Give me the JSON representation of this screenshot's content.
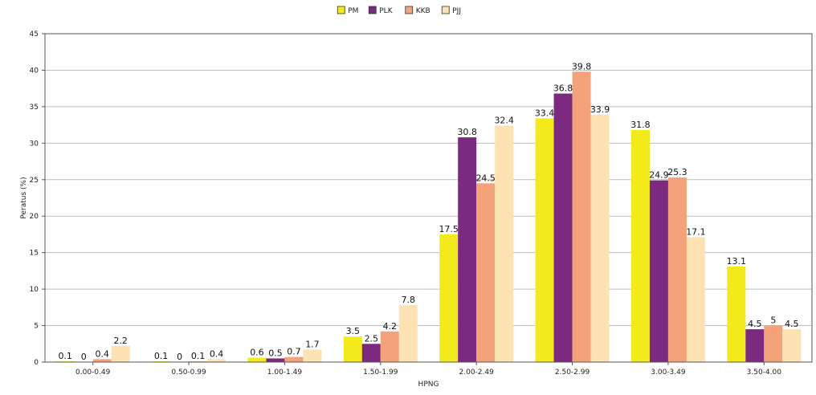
{
  "chart_data": {
    "type": "bar",
    "title": "",
    "xlabel": "HPNG",
    "ylabel": "Peratus (%)",
    "ylim": [
      0,
      45
    ],
    "ytick_step": 5,
    "grid": true,
    "legend_position": "top-center",
    "categories": [
      "0.00-0.49",
      "0.50-0.99",
      "1.00-1.49",
      "1.50-1.99",
      "2.00-2.49",
      "2.50-2.99",
      "3.00-3.49",
      "3.50-4.00"
    ],
    "series": [
      {
        "name": "PM",
        "color": "#f2ea1a",
        "values": [
          0.1,
          0.1,
          0.6,
          3.5,
          17.5,
          33.4,
          31.8,
          13.1
        ]
      },
      {
        "name": "PLK",
        "color": "#7b2a7f",
        "values": [
          0,
          0,
          0.5,
          2.5,
          30.8,
          36.8,
          24.9,
          4.5
        ]
      },
      {
        "name": "KKB",
        "color": "#f4a27a",
        "values": [
          0.4,
          0.1,
          0.7,
          4.2,
          24.5,
          39.8,
          25.3,
          5
        ]
      },
      {
        "name": "PJJ",
        "color": "#fde3b4",
        "values": [
          2.2,
          0.4,
          1.7,
          7.8,
          32.4,
          33.9,
          17.1,
          4.5
        ]
      }
    ]
  }
}
